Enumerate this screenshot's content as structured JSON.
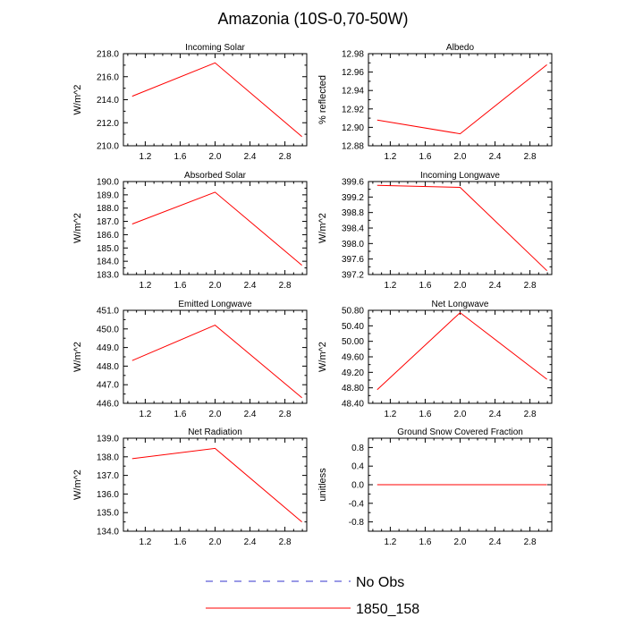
{
  "title": "Amazonia (10S-0,70-50W)",
  "legend": [
    {
      "label": "No Obs",
      "color": "#3333cc",
      "style": "dashed"
    },
    {
      "label": "1850_158",
      "color": "#ff0000",
      "style": "solid"
    }
  ],
  "chart_data": [
    {
      "type": "line",
      "title": "Incoming Solar",
      "ylabel": "W/m^2",
      "xlim": [
        0.95,
        3.05
      ],
      "ylim": [
        210.0,
        218.0
      ],
      "xticks": [
        "1.2",
        "1.6",
        "2.0",
        "2.4",
        "2.8"
      ],
      "yticks": [
        "210.0",
        "212.0",
        "214.0",
        "216.0",
        "218.0"
      ],
      "series": [
        {
          "name": "1850_158",
          "color": "#ff0000",
          "x": [
            1.05,
            2.0,
            2.995
          ],
          "y": [
            214.3,
            217.2,
            210.8
          ]
        }
      ]
    },
    {
      "type": "line",
      "title": "Albedo",
      "ylabel": "% reflected",
      "xlim": [
        0.95,
        3.05
      ],
      "ylim": [
        12.88,
        12.98
      ],
      "xticks": [
        "1.2",
        "1.6",
        "2.0",
        "2.4",
        "2.8"
      ],
      "yticks": [
        "12.88",
        "12.90",
        "12.92",
        "12.94",
        "12.96",
        "12.98"
      ],
      "series": [
        {
          "name": "1850_158",
          "color": "#ff0000",
          "x": [
            1.05,
            2.0,
            2.995
          ],
          "y": [
            12.908,
            12.893,
            12.968
          ]
        }
      ]
    },
    {
      "type": "line",
      "title": "Absorbed Solar",
      "ylabel": "W/m^2",
      "xlim": [
        0.95,
        3.05
      ],
      "ylim": [
        183.0,
        190.0
      ],
      "xticks": [
        "1.2",
        "1.6",
        "2.0",
        "2.4",
        "2.8"
      ],
      "yticks": [
        "183.0",
        "184.0",
        "185.0",
        "186.0",
        "187.0",
        "188.0",
        "189.0",
        "190.0"
      ],
      "series": [
        {
          "name": "1850_158",
          "color": "#ff0000",
          "x": [
            1.05,
            2.0,
            2.995
          ],
          "y": [
            186.8,
            189.2,
            183.7
          ]
        }
      ]
    },
    {
      "type": "line",
      "title": "Incoming Longwave",
      "ylabel": "W/m^2",
      "xlim": [
        0.95,
        3.05
      ],
      "ylim": [
        397.2,
        399.6
      ],
      "xticks": [
        "1.2",
        "1.6",
        "2.0",
        "2.4",
        "2.8"
      ],
      "yticks": [
        "397.2",
        "397.6",
        "398.0",
        "398.4",
        "398.8",
        "399.2",
        "399.6"
      ],
      "series": [
        {
          "name": "1850_158",
          "color": "#ff0000",
          "x": [
            1.05,
            2.0,
            2.995
          ],
          "y": [
            399.5,
            399.45,
            397.3
          ]
        }
      ]
    },
    {
      "type": "line",
      "title": "Emitted Longwave",
      "ylabel": "W/m^2",
      "xlim": [
        0.95,
        3.05
      ],
      "ylim": [
        446.0,
        451.0
      ],
      "xticks": [
        "1.2",
        "1.6",
        "2.0",
        "2.4",
        "2.8"
      ],
      "yticks": [
        "446.0",
        "447.0",
        "448.0",
        "449.0",
        "450.0",
        "451.0"
      ],
      "series": [
        {
          "name": "1850_158",
          "color": "#ff0000",
          "x": [
            1.05,
            2.0,
            2.995
          ],
          "y": [
            448.3,
            450.2,
            446.3
          ]
        }
      ]
    },
    {
      "type": "line",
      "title": "Net Longwave",
      "ylabel": "W/m^2",
      "xlim": [
        0.95,
        3.05
      ],
      "ylim": [
        48.4,
        50.8
      ],
      "xticks": [
        "1.2",
        "1.6",
        "2.0",
        "2.4",
        "2.8"
      ],
      "yticks": [
        "48.40",
        "48.80",
        "49.20",
        "49.60",
        "50.00",
        "50.40",
        "50.80"
      ],
      "series": [
        {
          "name": "1850_158",
          "color": "#ff0000",
          "x": [
            1.05,
            2.0,
            2.995
          ],
          "y": [
            48.75,
            50.74,
            49.02
          ]
        }
      ]
    },
    {
      "type": "line",
      "title": "Net Radiation",
      "ylabel": "W/m^2",
      "xlim": [
        0.95,
        3.05
      ],
      "ylim": [
        134.0,
        139.0
      ],
      "xticks": [
        "1.2",
        "1.6",
        "2.0",
        "2.4",
        "2.8"
      ],
      "yticks": [
        "134.0",
        "135.0",
        "136.0",
        "137.0",
        "138.0",
        "139.0"
      ],
      "series": [
        {
          "name": "1850_158",
          "color": "#ff0000",
          "x": [
            1.05,
            2.0,
            2.995
          ],
          "y": [
            137.9,
            138.45,
            134.5
          ]
        }
      ]
    },
    {
      "type": "line",
      "title": "Ground Snow Covered Fraction",
      "ylabel": "unitless",
      "xlim": [
        0.95,
        3.05
      ],
      "ylim": [
        -1.0,
        1.0
      ],
      "xticks": [
        "1.2",
        "1.6",
        "2.0",
        "2.4",
        "2.8"
      ],
      "yticks": [
        "-0.8",
        "-0.4",
        "0.0",
        "0.4",
        "0.8"
      ],
      "series": [
        {
          "name": "1850_158",
          "color": "#ff0000",
          "x": [
            1.05,
            2.0,
            2.995
          ],
          "y": [
            0.0,
            0.0,
            0.0
          ]
        }
      ]
    }
  ]
}
